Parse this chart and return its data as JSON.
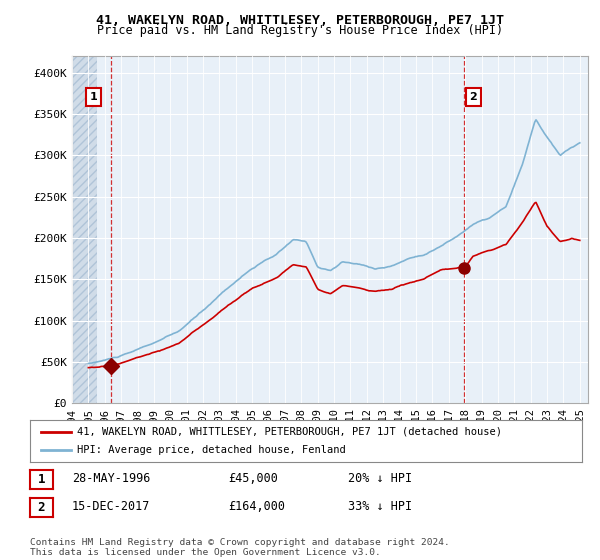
{
  "title1": "41, WAKELYN ROAD, WHITTLESEY, PETERBOROUGH, PE7 1JT",
  "title2": "Price paid vs. HM Land Registry's House Price Index (HPI)",
  "ylim": [
    0,
    420000
  ],
  "yticks": [
    0,
    50000,
    100000,
    150000,
    200000,
    250000,
    300000,
    350000,
    400000
  ],
  "ytick_labels": [
    "£0",
    "£50K",
    "£100K",
    "£150K",
    "£200K",
    "£250K",
    "£300K",
    "£350K",
    "£400K"
  ],
  "xlim_start": 1994.0,
  "xlim_end": 2025.5,
  "sale1_x": 1996.41,
  "sale1_y": 45000,
  "sale1_label": "1",
  "sale2_x": 2017.96,
  "sale2_y": 164000,
  "sale2_label": "2",
  "legend_line1": "41, WAKELYN ROAD, WHITTLESEY, PETERBOROUGH, PE7 1JT (detached house)",
  "legend_line2": "HPI: Average price, detached house, Fenland",
  "note1_label": "1",
  "note1_date": "28-MAY-1996",
  "note1_price": "£45,000",
  "note1_pct": "20% ↓ HPI",
  "note2_label": "2",
  "note2_date": "15-DEC-2017",
  "note2_price": "£164,000",
  "note2_pct": "33% ↓ HPI",
  "footer": "Contains HM Land Registry data © Crown copyright and database right 2024.\nThis data is licensed under the Open Government Licence v3.0.",
  "line_color_sold": "#cc0000",
  "line_color_hpi": "#7fb3d3",
  "bg_color": "#e8f0f8",
  "hatch_end_x": 1996.8,
  "marker1_color": "#8b0000",
  "marker2_color": "#8b0000"
}
